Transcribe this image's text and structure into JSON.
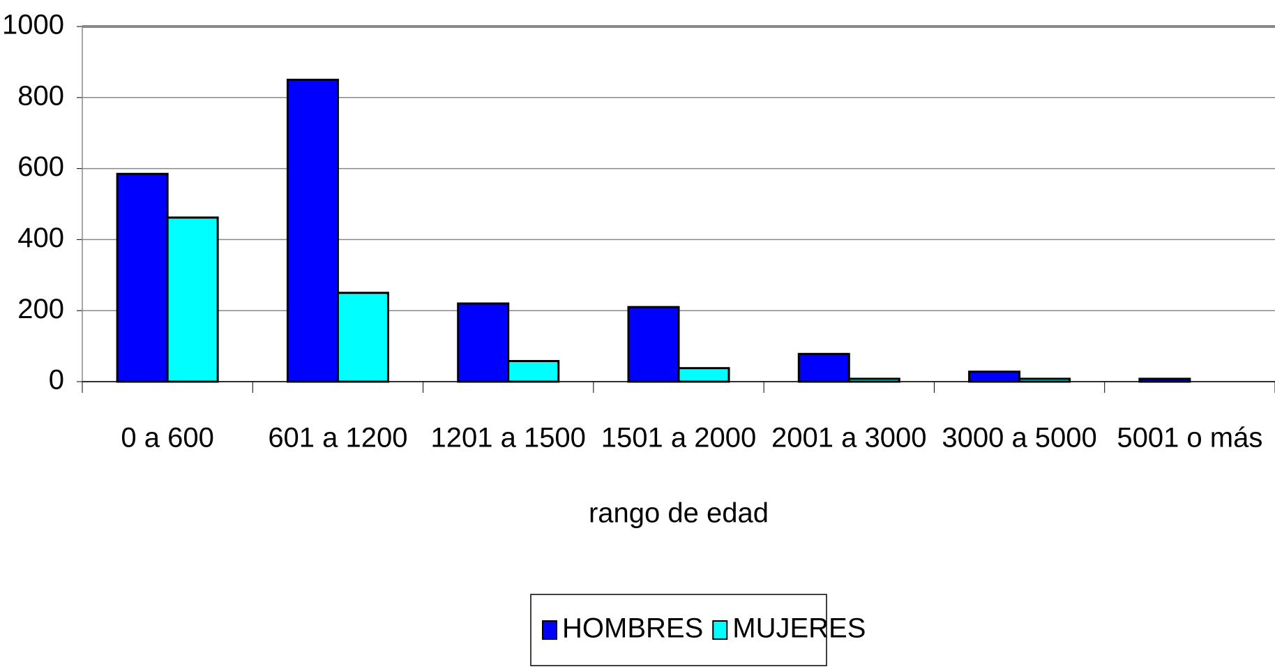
{
  "chart_data": {
    "type": "bar",
    "x_label": "rango de edad",
    "categories": [
      "0 a 600",
      "601 a 1200",
      "1201 a 1500",
      "1501 a 2000",
      "2001 a 3000",
      "3000 a 5000",
      "5001 o más"
    ],
    "series": [
      {
        "name": "HOMBRES",
        "color": "#0000ff",
        "values": [
          585,
          850,
          220,
          210,
          78,
          28,
          8
        ]
      },
      {
        "name": "MUJERES",
        "color": "#00ffff",
        "values": [
          462,
          250,
          58,
          38,
          8,
          8,
          0
        ]
      }
    ],
    "ylim": [
      0,
      1000
    ],
    "yticks": [
      0,
      200,
      400,
      600,
      800,
      1000
    ],
    "grid": true,
    "legend": "bottom"
  }
}
